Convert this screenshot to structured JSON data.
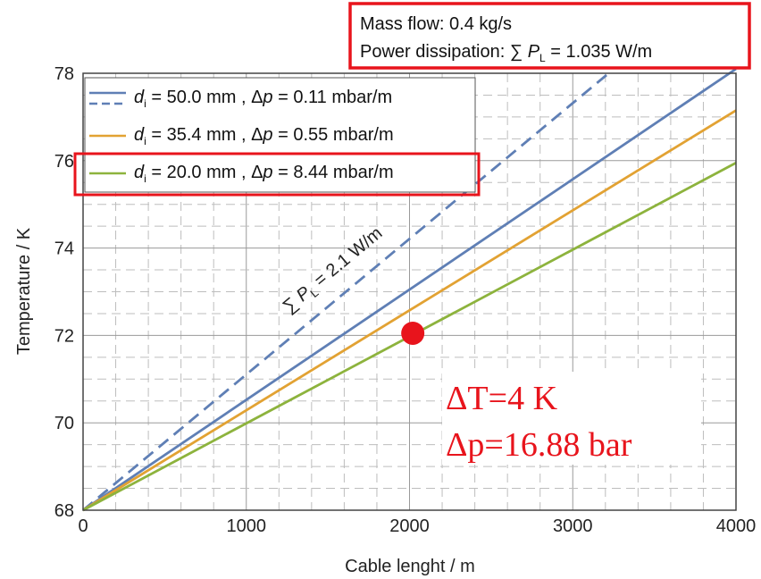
{
  "info_box": {
    "line1": "Mass flow: 0.4 kg/s",
    "line2_prefix": "Power dissipation: ∑ ",
    "line2_symbol": "P",
    "line2_sub": "L",
    "line2_suffix": " = 1.035 W/m",
    "border_color": "#e8141c"
  },
  "chart_data": {
    "type": "line",
    "xlabel": "Cable lenght / m",
    "ylabel": "Temperature / K",
    "xlim": [
      0,
      4000
    ],
    "ylim": [
      68,
      78
    ],
    "xticks": [
      0,
      1000,
      2000,
      3000,
      4000
    ],
    "yticks": [
      68,
      70,
      72,
      74,
      76,
      78
    ],
    "grid": true,
    "legend_position": "top-left",
    "series": [
      {
        "name": "d_i = 50.0 mm , Δp = 0.11 mbar/m",
        "legend": {
          "sym": "d",
          "sub": "i",
          "text1": " = 50.0 mm , Δ",
          "sym2": "p",
          "text2": " = 0.11 mbar/m"
        },
        "color": "#5f7fb5",
        "style": "solid",
        "x": [
          0,
          4000
        ],
        "y": [
          68,
          78.1
        ]
      },
      {
        "name": "dashed 50.0 mm",
        "color": "#5f7fb5",
        "style": "dashed",
        "x": [
          0,
          3220
        ],
        "y": [
          68,
          78
        ]
      },
      {
        "name": "d_i = 35.4 mm , Δp = 0.55 mbar/m",
        "legend": {
          "sym": "d",
          "sub": "i",
          "text1": " = 35.4 mm , Δ",
          "sym2": "p",
          "text2": " = 0.55 mbar/m"
        },
        "color": "#e2a233",
        "style": "solid",
        "x": [
          0,
          4000
        ],
        "y": [
          68,
          77.15
        ]
      },
      {
        "name": "d_i = 20.0 mm , Δp = 8.44 mbar/m",
        "legend": {
          "sym": "d",
          "sub": "i",
          "text1": " = 20.0 mm , Δ",
          "sym2": "p",
          "text2": " = 8.44 mbar/m"
        },
        "color": "#8db33d",
        "style": "solid",
        "x": [
          0,
          4000
        ],
        "y": [
          68,
          75.95
        ]
      }
    ],
    "annotations": {
      "dashed_label": {
        "prefix": "∑ ",
        "sym": "P",
        "sub": "L",
        "suffix": " = 2.1 W/m",
        "x": 1550,
        "y": 73.4,
        "color": "#5f7fb5"
      },
      "marker": {
        "x": 2020,
        "y": 72.05,
        "color": "#e8141c"
      },
      "note_lines": [
        "ΔT=4 K",
        "Δp=16.88 bar"
      ],
      "note_color": "#e8141c"
    }
  }
}
